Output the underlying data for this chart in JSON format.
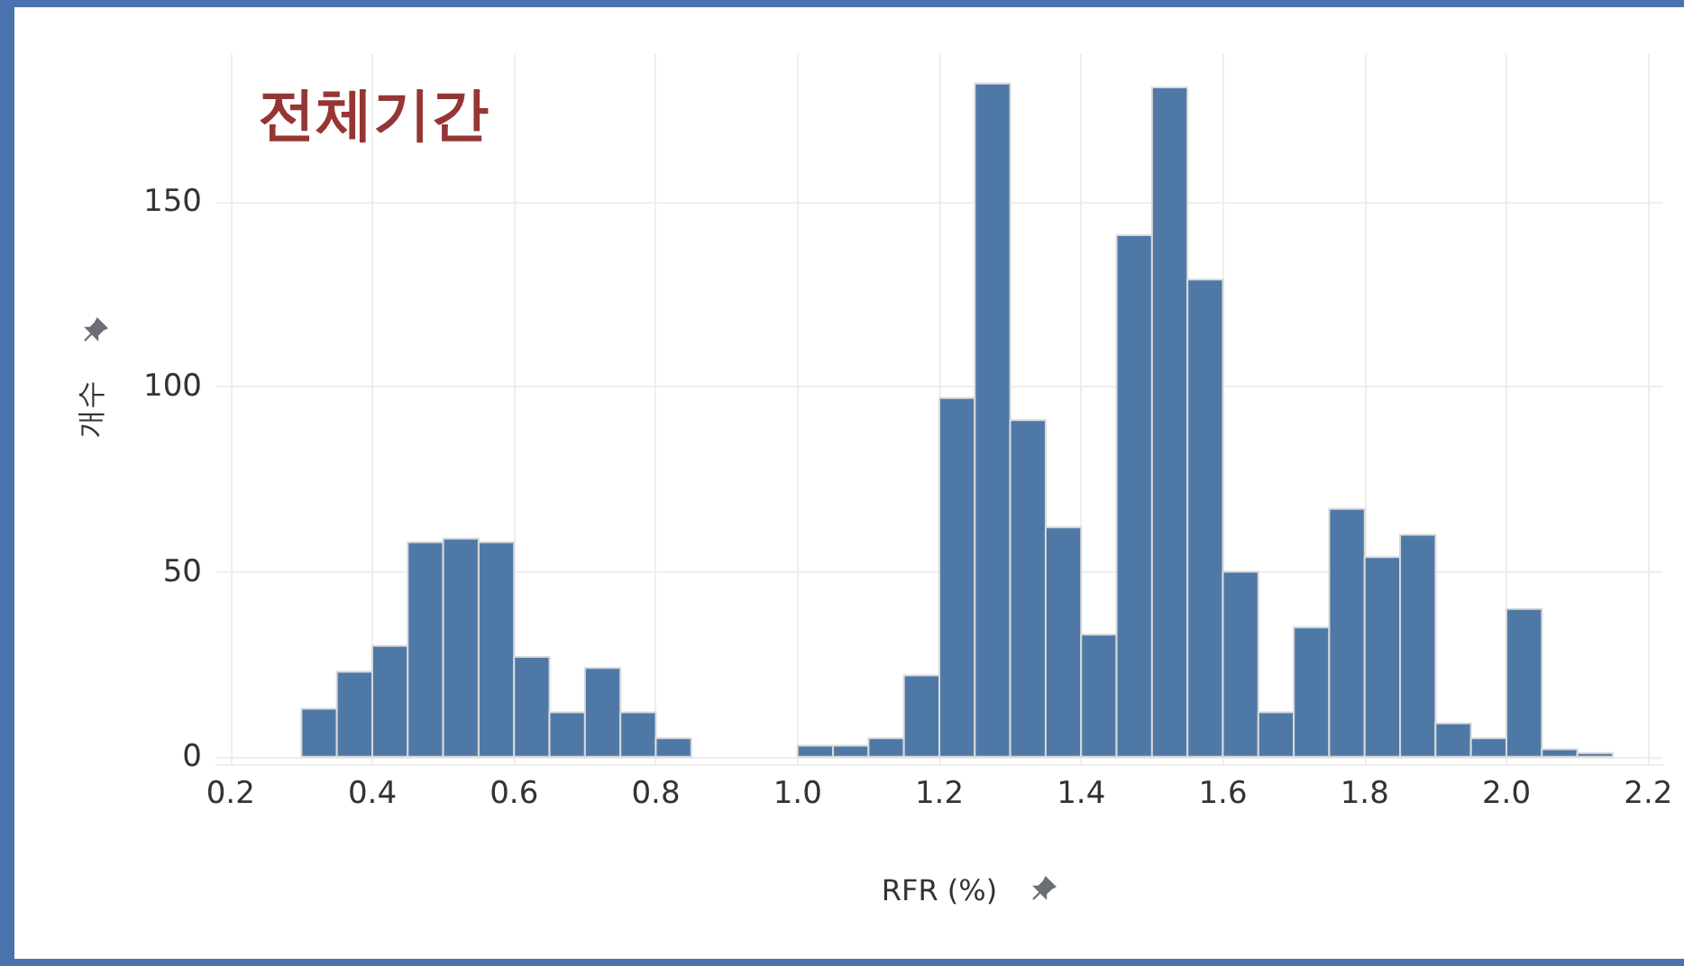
{
  "chart_data": {
    "type": "histogram",
    "title": "전체기간",
    "xlabel": "RFR (%)",
    "ylabel": "개수",
    "color": "#4e79a7",
    "bins": [
      0.3,
      0.35,
      0.4,
      0.45,
      0.5,
      0.55,
      0.6,
      0.65,
      0.7,
      0.75,
      0.8,
      0.85,
      0.9,
      0.95,
      1.0,
      1.05,
      1.1,
      1.15,
      1.2,
      1.25,
      1.3,
      1.35,
      1.4,
      1.45,
      1.5,
      1.55,
      1.6,
      1.65,
      1.7,
      1.75,
      1.8,
      1.85,
      1.9,
      1.95,
      2.0,
      2.05,
      2.1,
      2.15
    ],
    "values": [
      13,
      23,
      30,
      58,
      59,
      58,
      27,
      12,
      24,
      12,
      5,
      0,
      0,
      0,
      3,
      3,
      5,
      22,
      97,
      182,
      91,
      62,
      33,
      141,
      181,
      129,
      50,
      12,
      35,
      67,
      54,
      60,
      9,
      5,
      40,
      2,
      1
    ],
    "xlim": [
      0.18,
      2.22
    ],
    "xticks": [
      0.2,
      0.4,
      0.6,
      0.8,
      {
        "value": 1,
        "label": "1.0"
      },
      1.2,
      1.4,
      1.6,
      1.8,
      {
        "value": 2,
        "label": "2.0"
      },
      2.2
    ],
    "ylim": [
      -2,
      190
    ],
    "yticks": [
      0,
      50,
      100,
      150
    ],
    "grid": true
  }
}
